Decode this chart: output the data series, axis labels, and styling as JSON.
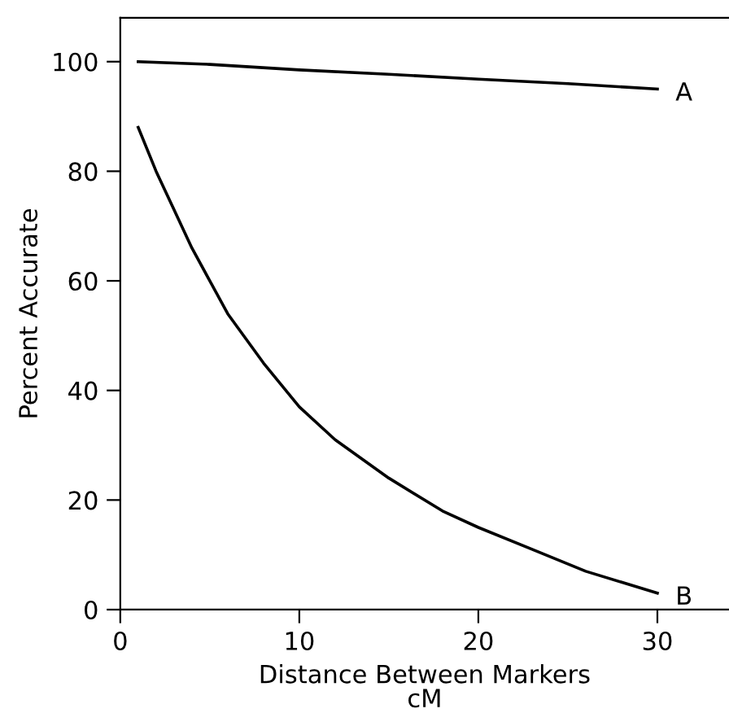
{
  "chart_data": {
    "type": "line",
    "xlabel": "Distance Between Markers\ncM",
    "ylabel": "Percent Accurate",
    "xlim": [
      0,
      34
    ],
    "xticks": [
      0,
      10,
      20,
      30
    ],
    "ylim": [
      0,
      108
    ],
    "yticks": [
      0,
      20,
      40,
      60,
      80,
      100
    ],
    "grid": false,
    "legend": false,
    "marker": "none",
    "line_style": "solid",
    "series": [
      {
        "name": "A",
        "color": "#000000",
        "x": [
          1,
          5,
          10,
          15,
          20,
          25,
          30
        ],
        "values": [
          100,
          99.5,
          98.5,
          97.7,
          96.8,
          96,
          95
        ]
      },
      {
        "name": "B",
        "color": "#000000",
        "x": [
          1,
          2,
          4,
          6,
          8,
          10,
          12,
          15,
          18,
          20,
          23,
          26,
          28,
          30
        ],
        "values": [
          88,
          80,
          66,
          54,
          45,
          37,
          31,
          24,
          18,
          15,
          11,
          7,
          5,
          3
        ]
      }
    ]
  }
}
